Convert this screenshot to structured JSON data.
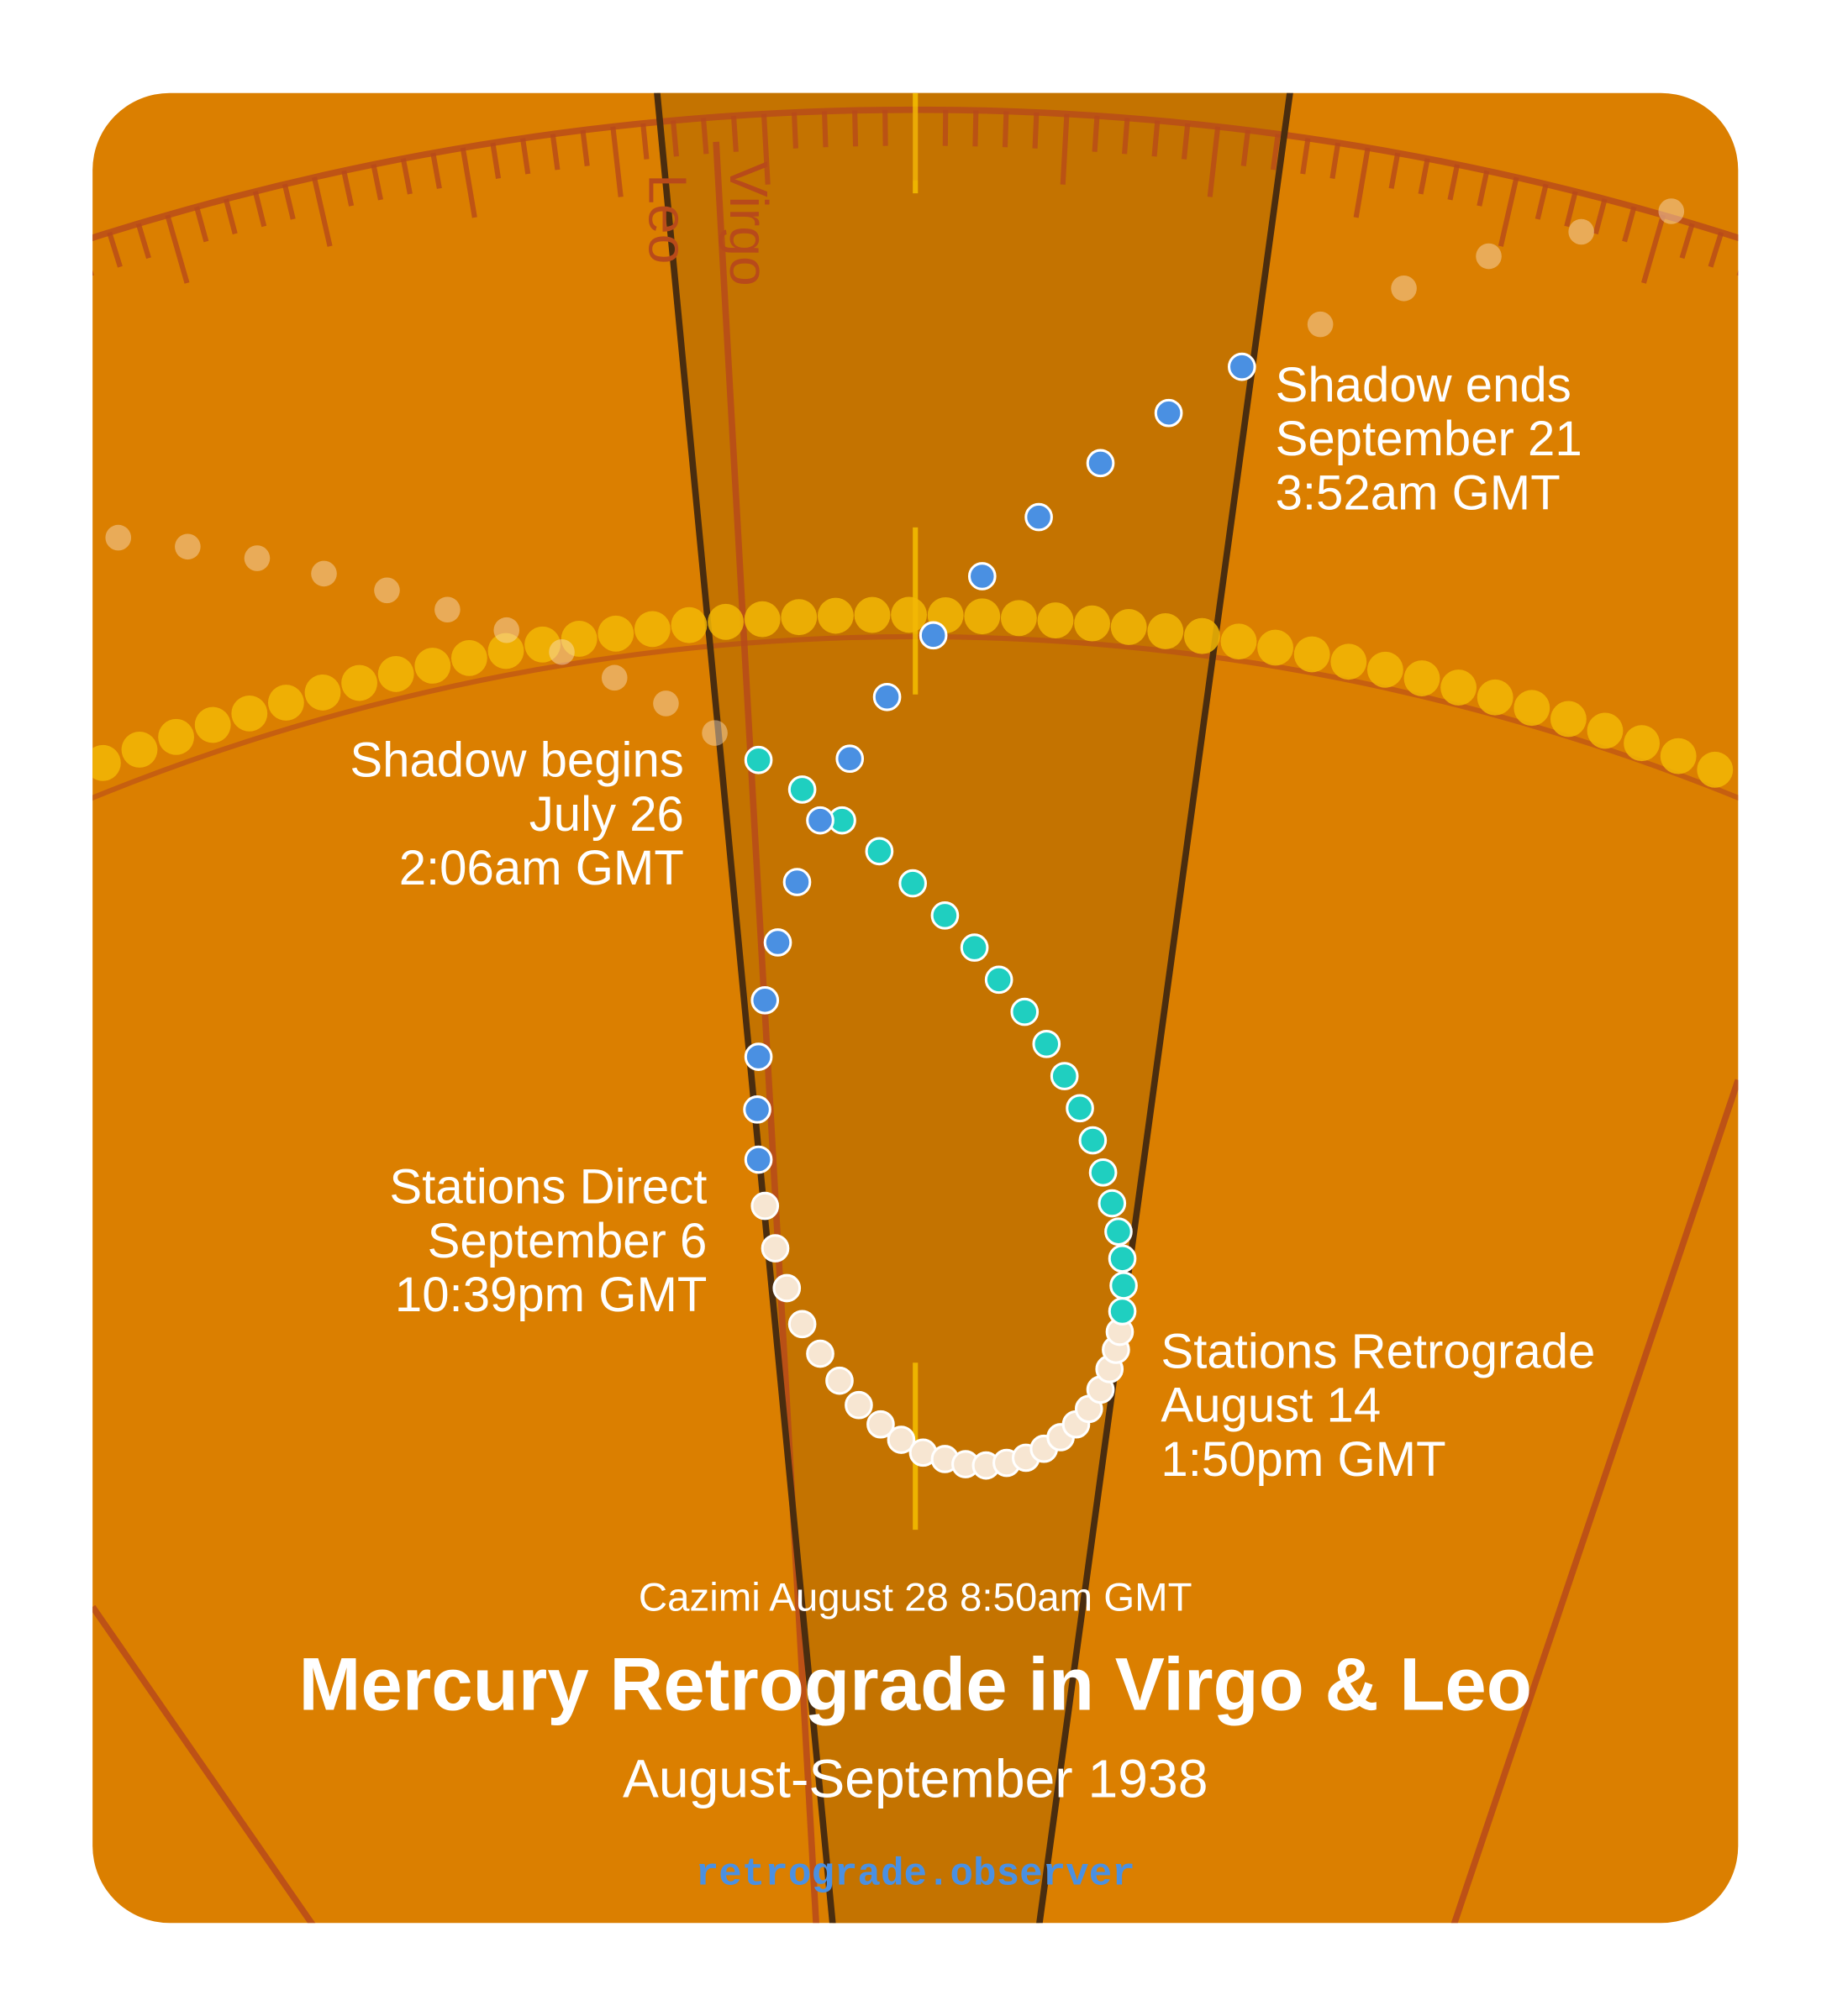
{
  "signs": [
    "Virgo",
    "Leo"
  ],
  "events": [
    {
      "lines": [
        "Shadow ends",
        "September 21",
        "3:52am GMT"
      ]
    },
    {
      "lines": [
        "Shadow begins",
        "July 26",
        "2:06am GMT"
      ]
    },
    {
      "lines": [
        "Stations Direct",
        "September 6",
        "10:39pm GMT"
      ]
    },
    {
      "lines": [
        "Stations Retrograde",
        "August 14",
        "1:50pm GMT"
      ]
    }
  ],
  "cazimi": "Cazimi August 28 8:50am GMT",
  "title": "Mercury Retrograde in Virgo & Leo",
  "subtitle": "August-September 1938",
  "footer": "retrograde.observer"
}
